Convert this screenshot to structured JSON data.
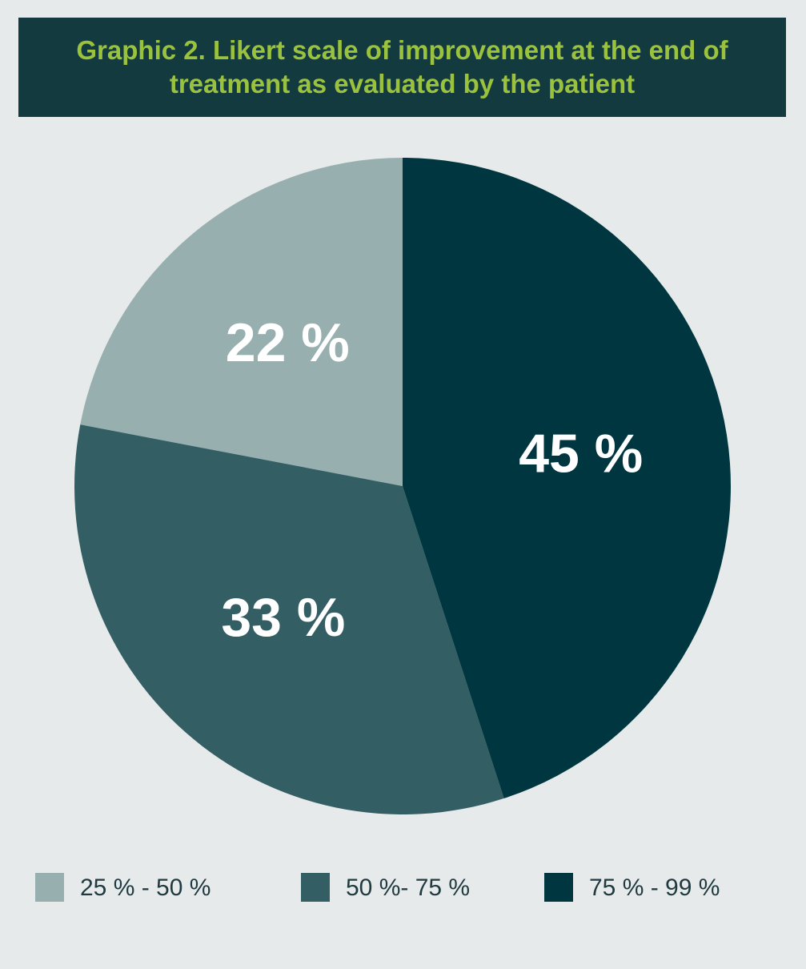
{
  "chart_data": {
    "type": "pie",
    "title": "Graphic 2. Likert scale of improvement at the end of treatment as evaluated by the patient",
    "categories": [
      "25 % - 50 %",
      "50 %- 75 %",
      "75 % - 99 %"
    ],
    "values": [
      22,
      33,
      45
    ],
    "value_labels": [
      "22 %",
      "33 %",
      "45 %"
    ],
    "colors": [
      "#98afb0",
      "#335e64",
      "#003640"
    ]
  }
}
